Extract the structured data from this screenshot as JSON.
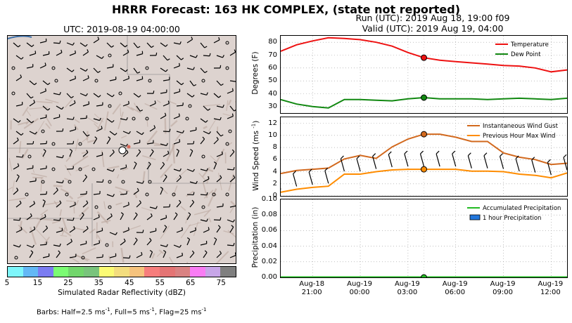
{
  "title": "HRRR Forecast: 163 HK COMPLEX, (state not reported)",
  "run": "Run (UTC): 2019 Aug 18, 19:00 f09",
  "valid": "Valid (UTC): 2019 Aug 19, 04:00",
  "map": {
    "title": "UTC: 2019-08-19 04:00:00",
    "colorbar_label": "Simulated Radar Reflectivity (dBZ)",
    "colorbar_ticks": [
      "5",
      "15",
      "25",
      "35",
      "45",
      "55",
      "65",
      "75"
    ],
    "colorbar_colors": [
      "#7ef6fb",
      "#63b8f5",
      "#7b7cf2",
      "#7bfc73",
      "#72d66c",
      "#79c47c",
      "#fbfb74",
      "#f3dd7e",
      "#f6c37d",
      "#f67d7c",
      "#e47474",
      "#d98282",
      "#f97cf4",
      "#c7a6e8",
      "#7f7f7f"
    ],
    "terrain_color": "#ddd3cf",
    "barbs_note": "Barbs: Half=2.5 ms",
    "barbs_note_sup1": "-1",
    "barbs_note_mid": ", Full=5 ms",
    "barbs_note_sup2": "-1",
    "barbs_note_mid2": ", Flag=25 ms",
    "barbs_note_sup3": "-1"
  },
  "x_tick_labels": [
    {
      "line1": "Aug-18",
      "line2": "21:00"
    },
    {
      "line1": "Aug-19",
      "line2": "00:00"
    },
    {
      "line1": "Aug-19",
      "line2": "03:00"
    },
    {
      "line1": "Aug-19",
      "line2": "06:00"
    },
    {
      "line1": "Aug-19",
      "line2": "09:00"
    },
    {
      "line1": "Aug-19",
      "line2": "12:00"
    }
  ],
  "chart_data": [
    {
      "type": "line",
      "ylabel": "Degrees (F)",
      "ylim": [
        25,
        85
      ],
      "yticks": [
        30,
        40,
        50,
        60,
        70,
        80
      ],
      "grid": true,
      "legend": "top-right",
      "x": [
        19,
        20,
        21,
        22,
        23,
        24,
        25,
        26,
        27,
        28,
        29,
        30,
        31,
        32,
        33,
        34,
        35,
        36,
        37
      ],
      "series": [
        {
          "name": "Temperature",
          "color": "#ee1111",
          "values": [
            73,
            78,
            81,
            83.5,
            83,
            82,
            80,
            77,
            72,
            68,
            66,
            65,
            64,
            63,
            62,
            61.5,
            60,
            57,
            58.5
          ]
        },
        {
          "name": "Dew Point",
          "color": "#118811",
          "values": [
            35.5,
            32,
            30,
            29,
            35.5,
            35.5,
            35,
            34.5,
            36,
            37,
            36,
            36,
            36,
            35.5,
            36,
            36.5,
            36,
            35.5,
            36.5
          ]
        }
      ],
      "highlight_x": 28,
      "highlight_values": [
        68,
        37
      ]
    },
    {
      "type": "line",
      "ylabel": "Wind Speed (ms",
      "ylabel_sup": "-1",
      "ylabel_tail": ")",
      "ylim": [
        0,
        13
      ],
      "yticks": [
        0,
        2,
        4,
        6,
        8,
        10,
        12
      ],
      "grid": true,
      "legend": "top-right",
      "x": [
        19,
        20,
        21,
        22,
        23,
        24,
        25,
        26,
        27,
        28,
        29,
        30,
        31,
        32,
        33,
        34,
        35,
        36,
        37
      ],
      "series": [
        {
          "name": "Instantaneous Wind Gust",
          "color": "#d2691e",
          "values": [
            3.7,
            4.2,
            4.4,
            4.6,
            6.1,
            6.7,
            6.2,
            8.1,
            9.4,
            10.2,
            10.2,
            9.7,
            9.0,
            9.0,
            7.1,
            6.4,
            6.0,
            5.2,
            5.4
          ]
        },
        {
          "name": "Previous Hour Max Wind",
          "color": "#ff8c00",
          "values": [
            0.6,
            1.1,
            1.4,
            1.6,
            3.6,
            3.6,
            4.0,
            4.3,
            4.4,
            4.4,
            4.4,
            4.4,
            4.1,
            4.1,
            4.0,
            3.6,
            3.4,
            3.0,
            3.8
          ]
        }
      ],
      "highlight_x": 28,
      "highlight_values": [
        10.2,
        4.4
      ]
    },
    {
      "type": "bar",
      "ylabel": "Precipitation (in)",
      "ylim": [
        0,
        0.1
      ],
      "yticks": [
        "0.00",
        "0.02",
        "0.04",
        "0.06",
        "0.08",
        "0.10"
      ],
      "grid": true,
      "legend": "top-right",
      "x": [
        19,
        20,
        21,
        22,
        23,
        24,
        25,
        26,
        27,
        28,
        29,
        30,
        31,
        32,
        33,
        34,
        35,
        36,
        37
      ],
      "series": [
        {
          "name": "Accumulated Precipitation",
          "color": "#22bb22",
          "values": [
            0,
            0,
            0,
            0,
            0,
            0,
            0,
            0,
            0,
            0,
            0,
            0,
            0,
            0,
            0,
            0,
            0,
            0,
            0
          ]
        },
        {
          "name": "1 hour Precipitation",
          "color": "#2277dd",
          "values": [
            0,
            0,
            0,
            0,
            0,
            0,
            0,
            0,
            0,
            0,
            0,
            0,
            0,
            0,
            0,
            0,
            0,
            0,
            0
          ]
        }
      ],
      "highlight_x": 28,
      "highlight_values": [
        0
      ]
    }
  ]
}
